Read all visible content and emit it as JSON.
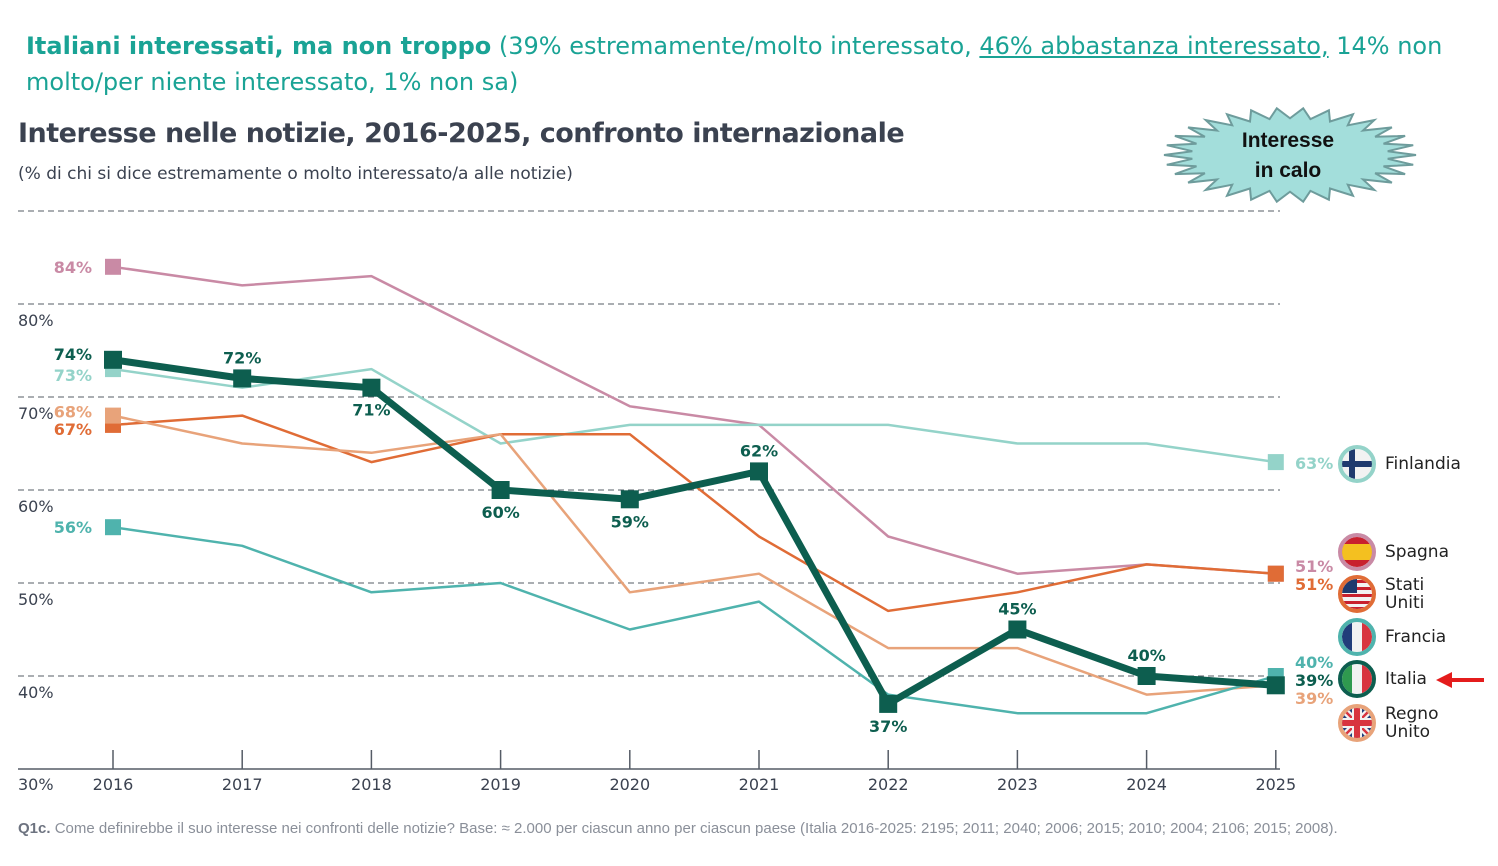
{
  "header": {
    "bold": "Italiani interessati, ma non troppo",
    "part1": " (39% estremamente/molto interessato, ",
    "underlined": "46% abbastanza interessato,",
    "part2": " 14% non molto/per niente interessato, 1% non sa)"
  },
  "callout": {
    "line1": "Interesse",
    "line2": "in calo"
  },
  "footnote": {
    "code": "Q1c.",
    "text": " Come definirebbe il suo interesse nei confronti delle notizie? Base: ≈ 2.000 per ciascun anno per ciascun paese (Italia 2016-2025: 2195; 2011; 2040; 2006; 2015; 2010; 2004; 2106; 2015; 2008)."
  },
  "legend": [
    {
      "label": "Finlandia"
    },
    {
      "label": "Spagna"
    },
    {
      "label": "Stati Uniti"
    },
    {
      "label": "Francia"
    },
    {
      "label": "Italia"
    },
    {
      "label": "Regno Unito"
    }
  ],
  "chart_data": {
    "type": "line",
    "title": "Interesse nelle notizie, 2016-2025, confronto internazionale",
    "subtitle": "(% di chi si dice estremamente o molto interessato/a alle notizie)",
    "x": [
      2016,
      2017,
      2018,
      2019,
      2020,
      2021,
      2022,
      2023,
      2024,
      2025
    ],
    "ylim": [
      30,
      90
    ],
    "yticks": [
      30,
      40,
      50,
      60,
      70,
      80
    ],
    "ytick_labels": [
      "30%",
      "40%",
      "50%",
      "60%",
      "70%",
      "80%"
    ],
    "grid": true,
    "series": [
      {
        "name": "Spagna",
        "color": "#c98aa5",
        "values": [
          84,
          82,
          83,
          76,
          69,
          67,
          55,
          51,
          52,
          51
        ]
      },
      {
        "name": "Finlandia",
        "color": "#94d3c9",
        "values": [
          73,
          71,
          73,
          65,
          67,
          67,
          67,
          65,
          65,
          63
        ]
      },
      {
        "name": "Stati Uniti",
        "color": "#e06c36",
        "values": [
          67,
          68,
          63,
          66,
          66,
          55,
          47,
          49,
          52,
          51
        ]
      },
      {
        "name": "Regno Unito",
        "color": "#e8a37a",
        "values": [
          68,
          65,
          64,
          66,
          49,
          51,
          43,
          43,
          38,
          39
        ]
      },
      {
        "name": "Francia",
        "color": "#4fb3ad",
        "values": [
          56,
          54,
          49,
          50,
          45,
          48,
          38,
          36,
          36,
          40
        ]
      },
      {
        "name": "Italia",
        "color": "#0d5e4f",
        "values": [
          74,
          72,
          71,
          60,
          59,
          62,
          37,
          45,
          40,
          39
        ],
        "highlight": true
      }
    ]
  }
}
